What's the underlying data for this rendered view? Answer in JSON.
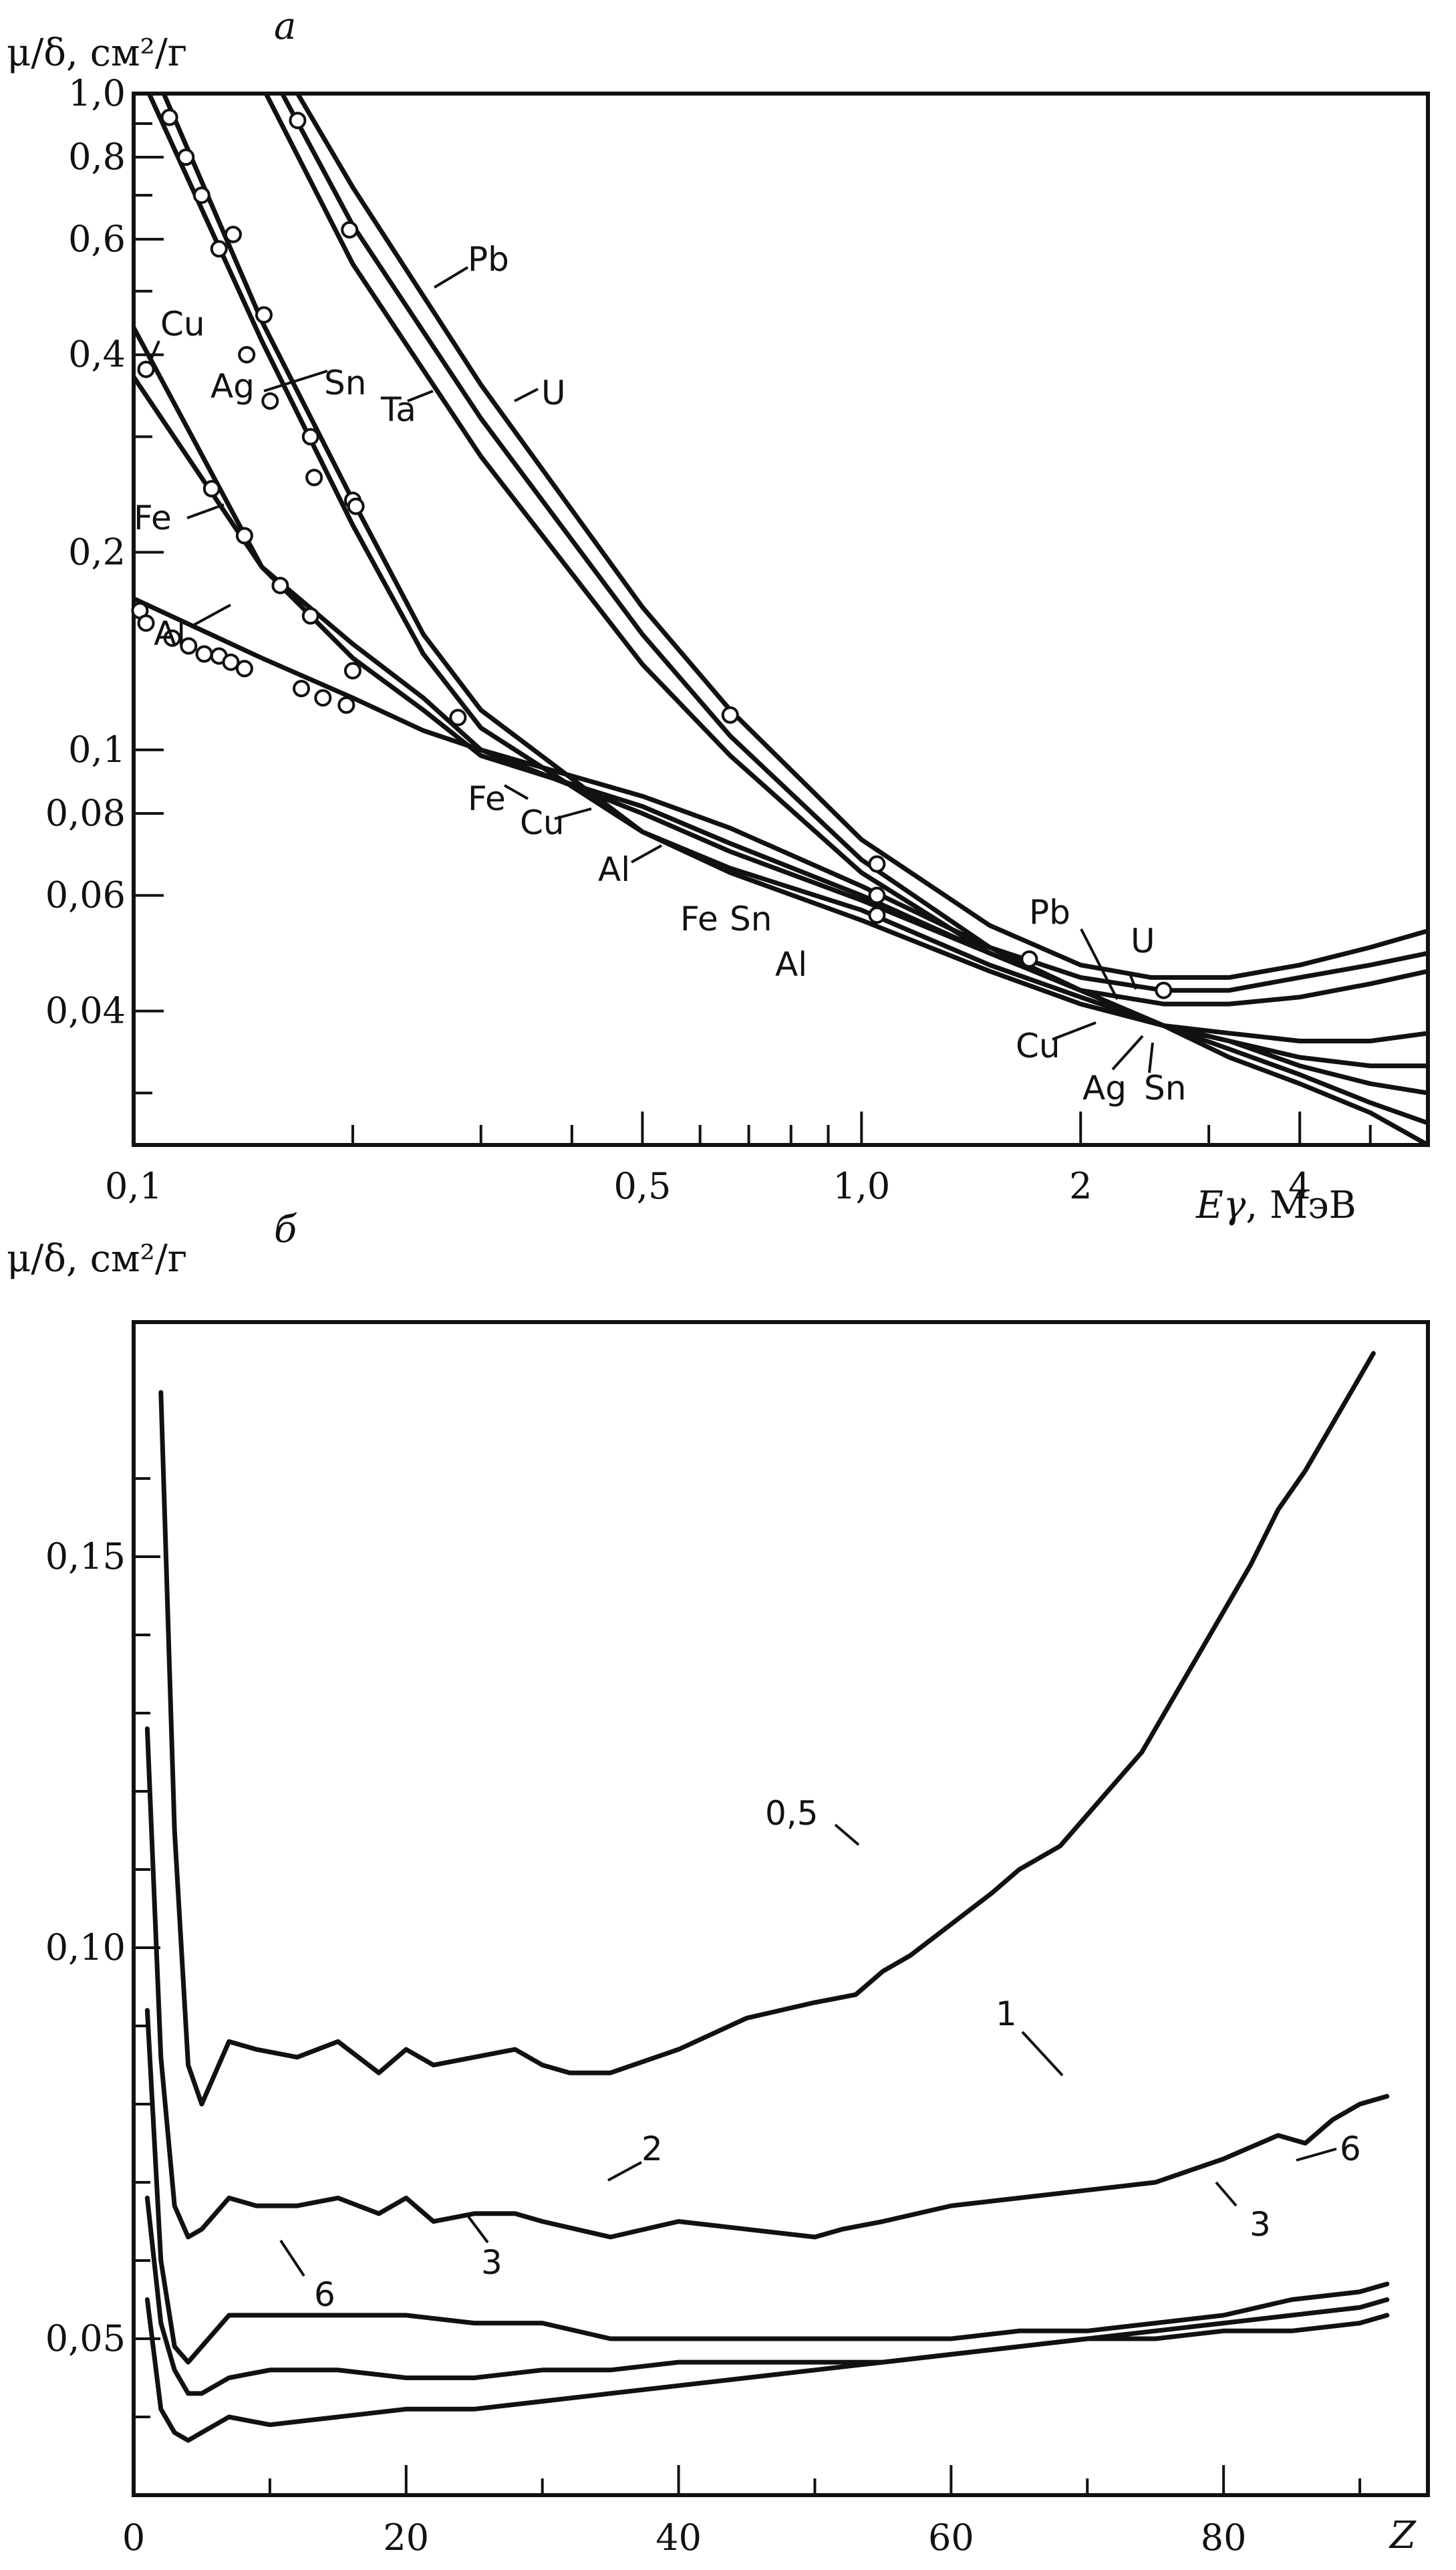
{
  "chart_data": [
    {
      "panel": "a",
      "type": "line",
      "ylabel": "μ/δ, см²/г",
      "xlabel": "Eγ, МэВ",
      "x_scale": "log",
      "y_scale": "log",
      "xlim": [
        0.1,
        6
      ],
      "ylim": [
        0.025,
        1.0
      ],
      "x_tick_labels": [
        {
          "v": 0.1,
          "t": "0,1"
        },
        {
          "v": 0.5,
          "t": "0,5"
        },
        {
          "v": 1.0,
          "t": "1,0"
        },
        {
          "v": 2,
          "t": "2"
        },
        {
          "v": 4,
          "t": "4"
        }
      ],
      "x_minor_ticks": [
        0.2,
        0.3,
        0.4,
        0.6,
        0.7,
        0.8,
        0.9,
        3,
        5
      ],
      "y_tick_labels": [
        {
          "v": 1.0,
          "t": "1,0"
        },
        {
          "v": 0.8,
          "t": "0,8"
        },
        {
          "v": 0.6,
          "t": "0,6"
        },
        {
          "v": 0.4,
          "t": "0,4"
        },
        {
          "v": 0.2,
          "t": "0,2"
        },
        {
          "v": 0.1,
          "t": "0,1"
        },
        {
          "v": 0.08,
          "t": "0,08"
        },
        {
          "v": 0.06,
          "t": "0,06"
        },
        {
          "v": 0.04,
          "t": "0,04"
        }
      ],
      "y_minor_ticks": [
        0.9,
        0.7,
        0.5,
        0.3,
        0.03
      ],
      "series": [
        {
          "name": "U",
          "x": [
            0.168,
            0.2,
            0.3,
            0.5,
            0.66,
            1.0,
            1.5,
            2.0,
            2.5,
            3.2,
            4.0,
            5.0,
            6.0
          ],
          "y": [
            1.0,
            0.72,
            0.36,
            0.165,
            0.115,
            0.073,
            0.054,
            0.047,
            0.045,
            0.045,
            0.047,
            0.05,
            0.053
          ]
        },
        {
          "name": "Pb",
          "x": [
            0.16,
            0.2,
            0.3,
            0.5,
            0.66,
            1.0,
            1.5,
            2.0,
            2.6,
            3.2,
            4.0,
            5.0,
            6.0
          ],
          "y": [
            1.0,
            0.63,
            0.32,
            0.15,
            0.105,
            0.068,
            0.05,
            0.045,
            0.043,
            0.043,
            0.045,
            0.047,
            0.049
          ]
        },
        {
          "name": "Ta",
          "x": [
            0.152,
            0.2,
            0.3,
            0.5,
            0.66,
            1.0,
            1.5,
            2.0,
            2.6,
            3.2,
            4.0,
            5.0,
            6.0
          ],
          "y": [
            1.0,
            0.55,
            0.28,
            0.135,
            0.098,
            0.065,
            0.049,
            0.043,
            0.041,
            0.041,
            0.042,
            0.044,
            0.046
          ]
        },
        {
          "name": "Sn",
          "x": [
            0.11,
            0.15,
            0.2,
            0.25,
            0.3,
            0.5,
            0.66,
            1.0,
            1.5,
            2.0,
            2.6,
            3.2,
            4.0,
            5.0,
            6.0
          ],
          "y": [
            1.0,
            0.45,
            0.24,
            0.15,
            0.115,
            0.075,
            0.065,
            0.055,
            0.046,
            0.041,
            0.038,
            0.037,
            0.036,
            0.036,
            0.037
          ]
        },
        {
          "name": "Ag",
          "x": [
            0.105,
            0.15,
            0.2,
            0.25,
            0.3,
            0.5,
            0.66,
            1.0,
            1.5,
            2.0,
            2.6,
            3.2,
            4.0,
            5.0,
            6.0
          ],
          "y": [
            1.0,
            0.42,
            0.22,
            0.14,
            0.108,
            0.075,
            0.066,
            0.057,
            0.047,
            0.042,
            0.038,
            0.036,
            0.034,
            0.033,
            0.033
          ]
        },
        {
          "name": "Cu",
          "x": [
            0.1,
            0.15,
            0.2,
            0.25,
            0.3,
            0.5,
            0.66,
            1.0,
            1.5,
            2.0,
            2.6,
            3.2,
            4.0,
            5.0,
            6.0
          ],
          "y": [
            0.44,
            0.19,
            0.145,
            0.12,
            0.1,
            0.08,
            0.07,
            0.059,
            0.049,
            0.043,
            0.038,
            0.036,
            0.033,
            0.031,
            0.03
          ]
        },
        {
          "name": "Fe",
          "x": [
            0.1,
            0.15,
            0.2,
            0.25,
            0.3,
            0.5,
            0.66,
            1.0,
            1.5,
            2.0,
            2.6,
            3.2,
            4.0,
            5.0,
            6.0
          ],
          "y": [
            0.37,
            0.19,
            0.138,
            0.115,
            0.098,
            0.082,
            0.072,
            0.06,
            0.049,
            0.043,
            0.038,
            0.035,
            0.032,
            0.029,
            0.027
          ]
        },
        {
          "name": "Al",
          "x": [
            0.1,
            0.15,
            0.2,
            0.25,
            0.3,
            0.5,
            0.66,
            1.0,
            1.5,
            2.0,
            2.6,
            3.2,
            4.0,
            5.0,
            6.0
          ],
          "y": [
            0.17,
            0.138,
            0.12,
            0.107,
            0.1,
            0.085,
            0.076,
            0.062,
            0.05,
            0.043,
            0.038,
            0.034,
            0.031,
            0.028,
            0.025
          ]
        }
      ],
      "markers": [
        {
          "x": [
            0.102,
            0.104,
            0.113,
            0.119,
            0.125,
            0.131,
            0.136,
            0.142,
            0.17,
            0.182,
            0.196,
            0.279
          ],
          "y": [
            0.163,
            0.156,
            0.148,
            0.144,
            0.14,
            0.139,
            0.136,
            0.133,
            0.124,
            0.12,
            0.117,
            0.112
          ]
        },
        {
          "x": [
            0.104,
            0.128,
            0.142,
            0.159,
            0.175,
            0.2,
            0.66,
            1.05,
            1.05,
            1.05,
            1.7,
            2.6
          ],
          "y": [
            0.38,
            0.25,
            0.212,
            0.178,
            0.16,
            0.132,
            0.113,
            0.067,
            0.06,
            0.056,
            0.048,
            0.043
          ]
        },
        {
          "x": [
            0.112,
            0.118,
            0.124,
            0.131,
            0.137,
            0.143,
            0.151,
            0.154,
            0.175,
            0.177,
            0.2,
            0.202,
            0.168,
            0.198
          ],
          "y": [
            0.92,
            0.8,
            0.7,
            0.58,
            0.61,
            0.4,
            0.46,
            0.34,
            0.3,
            0.26,
            0.24,
            0.235,
            0.91,
            0.62
          ]
        }
      ]
    },
    {
      "panel": "б",
      "type": "line",
      "ylabel": "μ/δ, см²/г",
      "xlabel": "Z",
      "xlim": [
        0,
        95
      ],
      "ylim": [
        0.03,
        0.18
      ],
      "x_tick_labels": [
        {
          "v": 0,
          "t": "0"
        },
        {
          "v": 20,
          "t": "20"
        },
        {
          "v": 40,
          "t": "40"
        },
        {
          "v": 60,
          "t": "60"
        },
        {
          "v": 80,
          "t": "80"
        }
      ],
      "x_minor_ticks": [
        10,
        30,
        50,
        70,
        90
      ],
      "y_tick_labels": [
        {
          "v": 0.15,
          "t": "0,15"
        },
        {
          "v": 0.1,
          "t": "0,10"
        },
        {
          "v": 0.05,
          "t": "0,05"
        }
      ],
      "y_minor_ticks": [
        0.04,
        0.06,
        0.07,
        0.08,
        0.09,
        0.11,
        0.12,
        0.13,
        0.14,
        0.16
      ],
      "series": [
        {
          "name": "0,5",
          "x": [
            2,
            3,
            4,
            5,
            7,
            9,
            12,
            15,
            18,
            20,
            22,
            25,
            28,
            30,
            32,
            35,
            40,
            45,
            50,
            53,
            55,
            57,
            60,
            63,
            65,
            68,
            70,
            72,
            74,
            76,
            78,
            80,
            82,
            84,
            86,
            88,
            90,
            91
          ],
          "y": [
            0.171,
            0.115,
            0.085,
            0.08,
            0.088,
            0.087,
            0.086,
            0.088,
            0.084,
            0.087,
            0.085,
            0.086,
            0.087,
            0.085,
            0.084,
            0.084,
            0.087,
            0.091,
            0.093,
            0.094,
            0.097,
            0.099,
            0.103,
            0.107,
            0.11,
            0.113,
            0.117,
            0.121,
            0.125,
            0.131,
            0.137,
            0.143,
            0.149,
            0.156,
            0.161,
            0.167,
            0.173,
            0.176
          ]
        },
        {
          "name": "1",
          "x": [
            1,
            2,
            3,
            4,
            5,
            7,
            9,
            12,
            15,
            18,
            20,
            22,
            25,
            28,
            30,
            35,
            40,
            45,
            50,
            52,
            55,
            60,
            65,
            70,
            75,
            80,
            84,
            86,
            88,
            90,
            92
          ],
          "y": [
            0.128,
            0.086,
            0.067,
            0.063,
            0.064,
            0.068,
            0.067,
            0.067,
            0.068,
            0.066,
            0.068,
            0.065,
            0.066,
            0.066,
            0.065,
            0.063,
            0.065,
            0.064,
            0.063,
            0.064,
            0.065,
            0.067,
            0.068,
            0.069,
            0.07,
            0.073,
            0.076,
            0.075,
            0.078,
            0.08,
            0.081
          ]
        },
        {
          "name": "2",
          "x": [
            1,
            2,
            3,
            4,
            5,
            7,
            10,
            15,
            20,
            25,
            30,
            35,
            40,
            45,
            50,
            55,
            60,
            65,
            70,
            75,
            80,
            85,
            90,
            92
          ],
          "y": [
            0.092,
            0.06,
            0.049,
            0.047,
            0.049,
            0.053,
            0.053,
            0.053,
            0.053,
            0.052,
            0.052,
            0.05,
            0.05,
            0.05,
            0.05,
            0.05,
            0.05,
            0.051,
            0.051,
            0.052,
            0.053,
            0.055,
            0.056,
            0.057
          ]
        },
        {
          "name": "3",
          "x": [
            1,
            2,
            3,
            4,
            5,
            7,
            10,
            15,
            20,
            25,
            30,
            35,
            40,
            45,
            50,
            55,
            60,
            65,
            70,
            75,
            80,
            85,
            90,
            92
          ],
          "y": [
            0.068,
            0.052,
            0.046,
            0.043,
            0.043,
            0.045,
            0.046,
            0.046,
            0.045,
            0.045,
            0.046,
            0.046,
            0.047,
            0.047,
            0.047,
            0.047,
            0.048,
            0.049,
            0.05,
            0.05,
            0.051,
            0.051,
            0.052,
            0.053
          ]
        },
        {
          "name": "6",
          "x": [
            1,
            2,
            3,
            4,
            5,
            7,
            10,
            15,
            20,
            25,
            30,
            35,
            40,
            45,
            50,
            55,
            60,
            65,
            70,
            75,
            80,
            85,
            90,
            92
          ],
          "y": [
            0.055,
            0.041,
            0.038,
            0.037,
            0.038,
            0.04,
            0.039,
            0.04,
            0.041,
            0.041,
            0.042,
            0.043,
            0.044,
            0.045,
            0.046,
            0.047,
            0.048,
            0.049,
            0.05,
            0.051,
            0.052,
            0.053,
            0.054,
            0.055
          ]
        }
      ]
    }
  ],
  "panel_a": {
    "panel_letter": "а",
    "ylabel": "μ/δ, см²/г",
    "xlabel_sym": "Eγ",
    "xlabel_unit": ", МэВ",
    "labels": {
      "pb_top": "Pb",
      "u_top": "U",
      "ta": "Ta",
      "sn_top": "Sn",
      "ag_top": "Ag",
      "cu_top": "Cu",
      "fe_top": "Fe",
      "al_top": "Al",
      "fe_mid": "Fe",
      "cu_mid": "Cu",
      "al_mid": "Al",
      "fe_low": "Fe",
      "sn_low": "Sn",
      "al_low": "Al",
      "pb_bot": "Pb",
      "u_bot": "U",
      "cu_bot": "Cu",
      "ag_bot": "Ag",
      "sn_bot": "Sn"
    }
  },
  "panel_b": {
    "panel_letter": "б",
    "ylabel": "μ/δ, см²/г",
    "xlabel": "Z",
    "labels": {
      "c05": "0,5",
      "c1": "1",
      "c2": "2",
      "c3a": "3",
      "c3b": "3",
      "c6a": "6",
      "c6b": "6"
    }
  }
}
